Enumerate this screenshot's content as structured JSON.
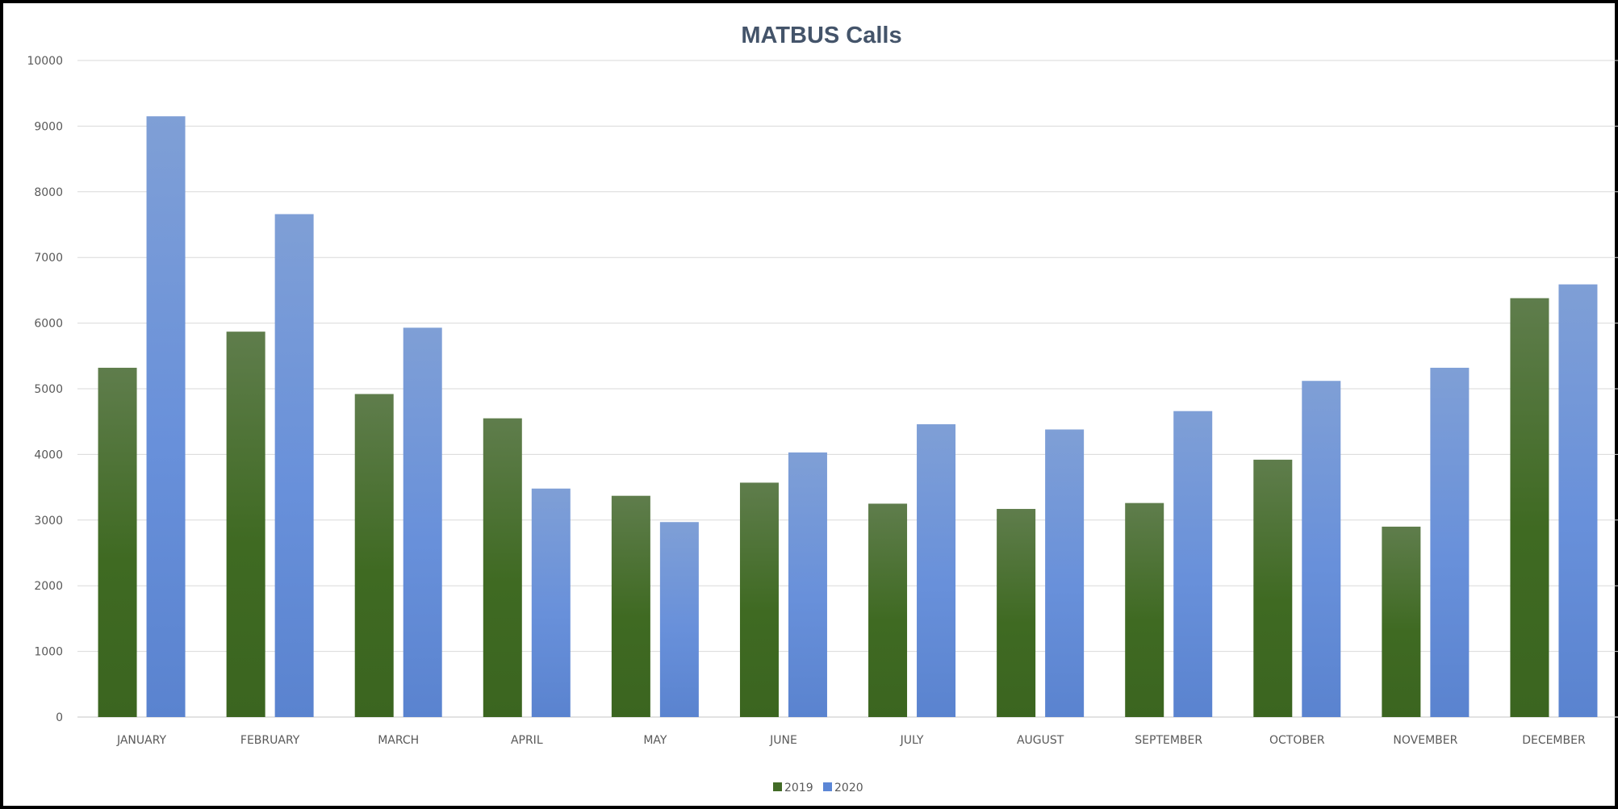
{
  "chart_data": {
    "type": "bar",
    "title": "MATBUS Calls",
    "xlabel": "",
    "ylabel": "",
    "ylim": [
      0,
      10000
    ],
    "yticks": [
      0,
      1000,
      2000,
      3000,
      4000,
      5000,
      6000,
      7000,
      8000,
      9000,
      10000
    ],
    "grid": true,
    "legend_position": "bottom",
    "categories": [
      "JANUARY",
      "FEBRUARY",
      "MARCH",
      "APRIL",
      "MAY",
      "JUNE",
      "JULY",
      "AUGUST",
      "SEPTEMBER",
      "OCTOBER",
      "NOVEMBER",
      "DECEMBER"
    ],
    "series": [
      {
        "name": "2019",
        "color": "#426b26",
        "values": [
          5320,
          5870,
          4920,
          4550,
          3370,
          3570,
          3250,
          3170,
          3260,
          3920,
          2900,
          6380
        ]
      },
      {
        "name": "2020",
        "color": "#5b86d6",
        "values": [
          9150,
          7660,
          5930,
          3480,
          2970,
          4030,
          4460,
          4380,
          4660,
          5120,
          5320,
          6590
        ]
      }
    ]
  }
}
